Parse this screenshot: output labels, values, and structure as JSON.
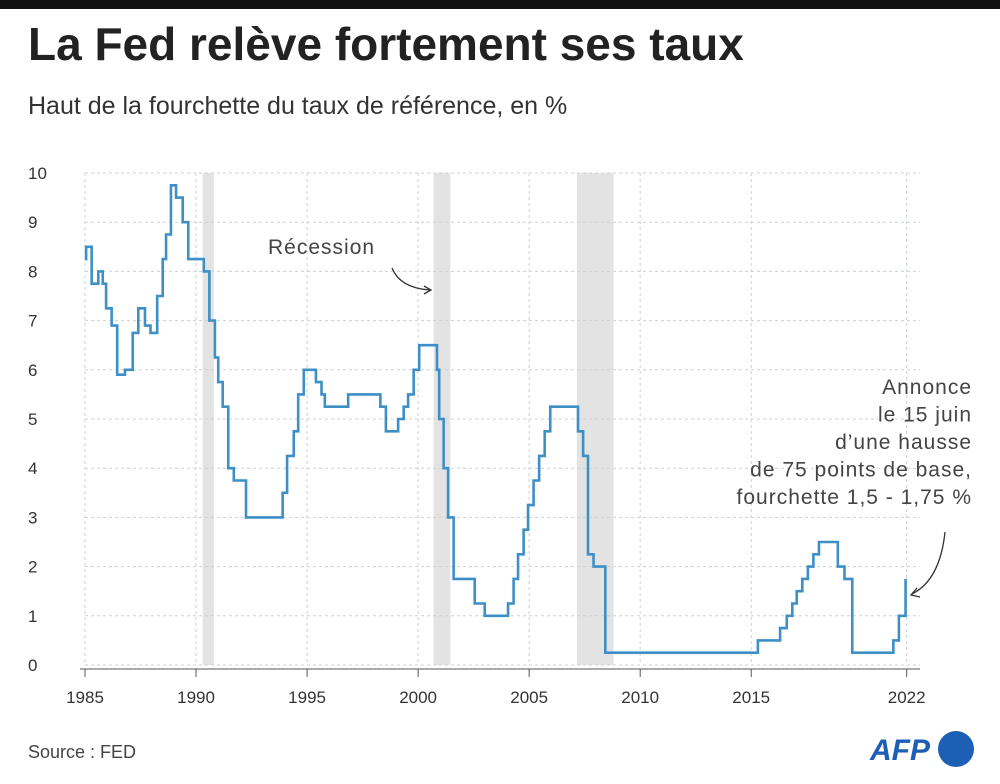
{
  "chart_data": {
    "type": "step-line",
    "title": "La Fed relève fortement ses taux",
    "subtitle": "Haut de la fourchette du taux de référence, en %",
    "source": "Source : FED",
    "logo": "AFP",
    "xlim": [
      1985,
      2022.6
    ],
    "ylim": [
      0,
      10
    ],
    "xticks": [
      1985,
      1990,
      1995,
      2000,
      2005,
      2010,
      2015,
      2022
    ],
    "yticks": [
      0,
      1,
      2,
      3,
      4,
      5,
      6,
      7,
      8,
      9,
      10
    ],
    "grid": true,
    "recession_label": "Récession",
    "recessions": [
      [
        1990.3,
        1990.8
      ],
      [
        2000.7,
        2001.45
      ],
      [
        2007.15,
        2008.8
      ]
    ],
    "annotation": [
      "Annonce",
      "le 15 juin",
      "d’une hausse",
      "de 75 points de base,",
      "fourchette 1,5 - 1,75 %"
    ],
    "series": [
      {
        "name": "Taux de référence",
        "color": "#3d8fc6",
        "x": [
          1985,
          1985.05,
          1985.3,
          1985.6,
          1985.8,
          1985.95,
          1986.2,
          1986.45,
          1986.8,
          1987.15,
          1987.4,
          1987.7,
          1987.95,
          1988.25,
          1988.5,
          1988.65,
          1988.87,
          1989.1,
          1989.4,
          1989.65,
          1990.35,
          1990.6,
          1990.85,
          1991.0,
          1991.2,
          1991.45,
          1991.7,
          1992.25,
          1992.4,
          1993.9,
          1994.1,
          1994.4,
          1994.6,
          1994.85,
          1995.4,
          1995.65,
          1995.8,
          1996.85,
          1998.3,
          1998.55,
          1999.1,
          1999.35,
          1999.55,
          1999.8,
          2000.05,
          2000.85,
          2000.95,
          2001.15,
          2001.35,
          2001.6,
          2002.55,
          2003.0,
          2004.05,
          2004.3,
          2004.5,
          2004.75,
          2004.95,
          2005.2,
          2005.45,
          2005.7,
          2005.95,
          2007.2,
          2007.43,
          2007.65,
          2007.9,
          2008.43,
          2015.3,
          2016.3,
          2016.6,
          2016.85,
          2017.05,
          2017.3,
          2017.55,
          2017.8,
          2018.05,
          2018.9,
          2019.2,
          2019.55,
          2021.4,
          2021.65,
          2021.95
        ],
        "values": [
          8.25,
          8.5,
          7.75,
          8.0,
          7.75,
          7.25,
          6.9,
          5.9,
          6.0,
          6.75,
          7.25,
          6.9,
          6.75,
          7.5,
          8.25,
          8.75,
          9.75,
          9.5,
          9.0,
          8.25,
          8.0,
          7.0,
          6.25,
          5.75,
          5.25,
          4.0,
          3.75,
          3.0,
          3.0,
          3.5,
          4.25,
          4.75,
          5.5,
          6.0,
          5.75,
          5.5,
          5.25,
          5.5,
          5.25,
          4.75,
          5.0,
          5.25,
          5.5,
          6.0,
          6.5,
          6.0,
          5.0,
          4.0,
          3.0,
          1.75,
          1.25,
          1.0,
          1.25,
          1.75,
          2.25,
          2.75,
          3.25,
          3.75,
          4.25,
          4.75,
          5.25,
          4.75,
          4.25,
          2.25,
          2.0,
          0.25,
          0.5,
          0.75,
          1.0,
          1.25,
          1.5,
          1.75,
          2.0,
          2.25,
          2.5,
          2.0,
          1.75,
          0.25,
          0.5,
          1.0,
          1.75
        ]
      }
    ]
  }
}
